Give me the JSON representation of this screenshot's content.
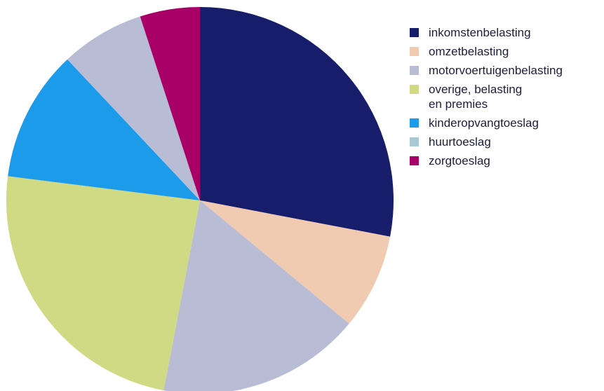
{
  "chart_data": {
    "type": "pie",
    "title": "",
    "legend_position": "right",
    "slices": [
      {
        "label": "inkomstenbelasting",
        "value": 28.0,
        "color": "#171d6b"
      },
      {
        "label": "omzetbelasting",
        "value": 8.0,
        "color": "#f1cab2"
      },
      {
        "label": "motorvoertuigenbelasting",
        "value": 17.0,
        "color": "#b9bcd5"
      },
      {
        "label": "overige, belasting\nen premies",
        "value": 24.0,
        "color": "#d0da84"
      },
      {
        "label": "kinderopvangtoeslag",
        "value": 11.0,
        "color": "#1c9bea"
      },
      {
        "label": "huurtoeslag",
        "value": 0.0,
        "color": "#a8c8d4"
      },
      {
        "label": "motorvoertuigenbelasting",
        "value": 7.0,
        "color": "#b9bcd5"
      },
      {
        "label": "zorgtoeslag",
        "value": 5.0,
        "color": "#a80067"
      }
    ],
    "legend": [
      {
        "label": "inkomstenbelasting",
        "color": "#171d6b"
      },
      {
        "label": "omzetbelasting",
        "color": "#f1cab2"
      },
      {
        "label": "motorvoertuigenbelasting",
        "color": "#b9bcd5"
      },
      {
        "label": "overige, belasting\nen premies",
        "color": "#d0da84"
      },
      {
        "label": "kinderopvangtoeslag",
        "color": "#1c9bea"
      },
      {
        "label": "huurtoeslag",
        "color": "#a8c8d4"
      },
      {
        "label": "zorgtoeslag",
        "color": "#a80067"
      }
    ]
  }
}
